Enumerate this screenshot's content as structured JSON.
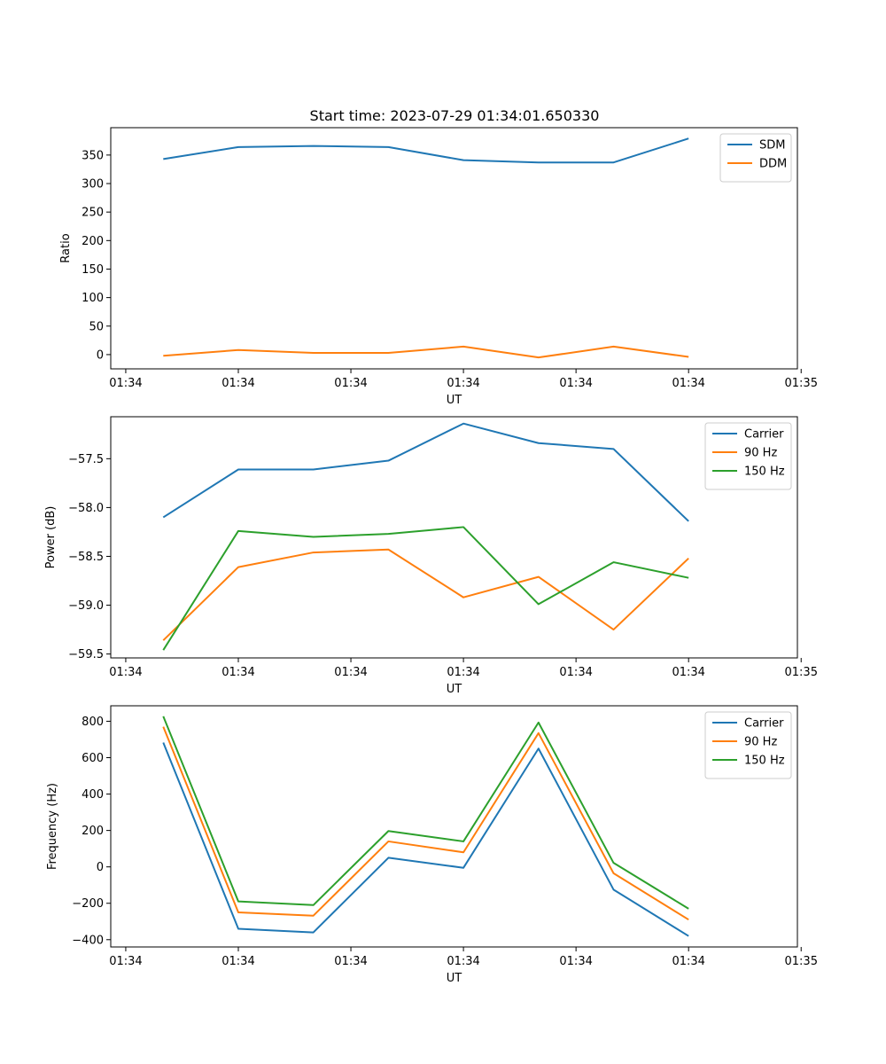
{
  "figure": {
    "title": "Start time: 2023-07-29 01:34:01.650330"
  },
  "chart_data": [
    {
      "type": "line",
      "title": "Start time: 2023-07-29 01:34:01.650330",
      "xlabel": "UT",
      "ylabel": "Ratio",
      "x": [
        1,
        2,
        3,
        4,
        5,
        6,
        7,
        8
      ],
      "xlim": [
        0.3,
        9.45
      ],
      "xticks": [
        0.5,
        2.0,
        3.5,
        5.0,
        6.5,
        8.0,
        9.5
      ],
      "xtick_labels": [
        "01:34",
        "01:34",
        "01:34",
        "01:34",
        "01:34",
        "01:34",
        "01:35"
      ],
      "ylim": [
        -25,
        398
      ],
      "yticks": [
        0,
        50,
        100,
        150,
        200,
        250,
        300,
        350
      ],
      "ytick_labels": [
        "0",
        "50",
        "100",
        "150",
        "200",
        "250",
        "300",
        "350"
      ],
      "legend_position": "top-right",
      "series": [
        {
          "name": "SDM",
          "color": "#1f77b4",
          "values": [
            343,
            364,
            366,
            364,
            341,
            337,
            337,
            379
          ]
        },
        {
          "name": "DDM",
          "color": "#ff7f0e",
          "values": [
            -2,
            8,
            3,
            3,
            14,
            -5,
            14,
            -4
          ]
        }
      ]
    },
    {
      "type": "line",
      "title": "",
      "xlabel": "UT",
      "ylabel": "Power (dB)",
      "x": [
        1,
        2,
        3,
        4,
        5,
        6,
        7,
        8
      ],
      "xlim": [
        0.3,
        9.45
      ],
      "xticks": [
        0.5,
        2.0,
        3.5,
        5.0,
        6.5,
        8.0,
        9.5
      ],
      "xtick_labels": [
        "01:34",
        "01:34",
        "01:34",
        "01:34",
        "01:34",
        "01:34",
        "01:35"
      ],
      "ylim": [
        -59.54,
        -57.07
      ],
      "yticks": [
        -59.5,
        -59.0,
        -58.5,
        -58.0,
        -57.5
      ],
      "ytick_labels": [
        "−59.5",
        "−59.0",
        "−58.5",
        "−58.0",
        "−57.5"
      ],
      "legend_position": "top-right",
      "series": [
        {
          "name": "Carrier",
          "color": "#1f77b4",
          "values": [
            -58.1,
            -57.61,
            -57.61,
            -57.52,
            -57.14,
            -57.34,
            -57.4,
            -58.14
          ]
        },
        {
          "name": "90 Hz",
          "color": "#ff7f0e",
          "values": [
            -59.36,
            -58.61,
            -58.46,
            -58.43,
            -58.92,
            -58.71,
            -59.25,
            -58.52
          ]
        },
        {
          "name": "150 Hz",
          "color": "#2ca02c",
          "values": [
            -59.46,
            -58.24,
            -58.3,
            -58.27,
            -58.2,
            -58.99,
            -58.56,
            -58.72
          ]
        }
      ]
    },
    {
      "type": "line",
      "title": "",
      "xlabel": "UT",
      "ylabel": "Frequency (Hz)",
      "x": [
        1,
        2,
        3,
        4,
        5,
        6,
        7,
        8
      ],
      "xlim": [
        0.3,
        9.45
      ],
      "xticks": [
        0.5,
        2.0,
        3.5,
        5.0,
        6.5,
        8.0,
        9.5
      ],
      "xtick_labels": [
        "01:34",
        "01:34",
        "01:34",
        "01:34",
        "01:34",
        "01:34",
        "01:35"
      ],
      "ylim": [
        -440,
        885
      ],
      "yticks": [
        -400,
        -200,
        0,
        200,
        400,
        600,
        800
      ],
      "ytick_labels": [
        "−400",
        "−200",
        "0",
        "200",
        "400",
        "600",
        "800"
      ],
      "legend_position": "top-right",
      "series": [
        {
          "name": "Carrier",
          "color": "#1f77b4",
          "values": [
            683,
            -340,
            -360,
            50,
            -5,
            650,
            -125,
            -380
          ]
        },
        {
          "name": "90 Hz",
          "color": "#ff7f0e",
          "values": [
            770,
            -250,
            -268,
            140,
            80,
            735,
            -35,
            -290
          ]
        },
        {
          "name": "150 Hz",
          "color": "#2ca02c",
          "values": [
            827,
            -190,
            -210,
            197,
            140,
            793,
            22,
            -230
          ]
        }
      ]
    }
  ]
}
